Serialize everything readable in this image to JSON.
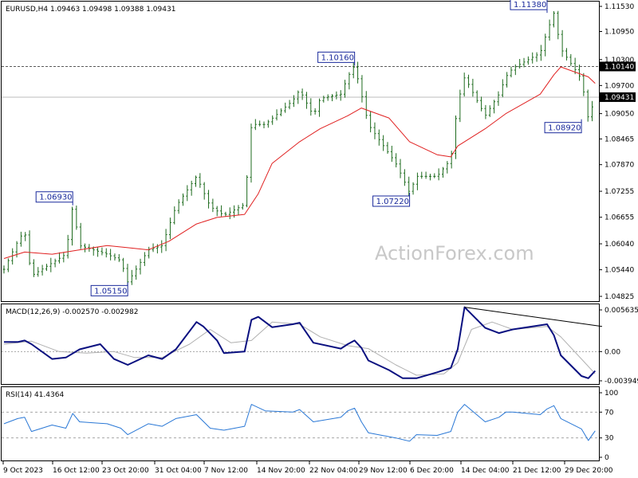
{
  "chart_data": {
    "type": "financial-chart",
    "instrument_header": "EURUSD,H4  1.09463 1.09498 1.09388 1.09431",
    "watermark": "ActionForex.com",
    "price_panel": {
      "yticks": [
        "1.11530",
        "1.10950",
        "1.10300",
        "1.09700",
        "1.09050",
        "1.08465",
        "1.07870",
        "1.07255",
        "1.06655",
        "1.06040",
        "1.05440",
        "1.04825"
      ],
      "ylim": [
        1.04825,
        1.1153
      ],
      "resistance_level_label": "1.10140",
      "last_price_label": "1.09431",
      "annotations": [
        {
          "label": "1.06930",
          "x": "Oct 19"
        },
        {
          "label": "1.05150",
          "x": "Oct 27"
        },
        {
          "label": "1.10160",
          "x": "Nov 29"
        },
        {
          "label": "1.07220",
          "x": "Dec 7"
        },
        {
          "label": "1.11380",
          "x": "Dec 27"
        },
        {
          "label": "1.08920",
          "x": "Jan 1"
        }
      ],
      "price_path": [
        [
          "Oct 9",
          1.0545
        ],
        [
          "Oct 11",
          1.061
        ],
        [
          "Oct 12",
          1.0635
        ],
        [
          "Oct 13",
          1.053
        ],
        [
          "Oct 16",
          1.056
        ],
        [
          "Oct 18",
          1.058
        ],
        [
          "Oct 19",
          1.0693
        ],
        [
          "Oct 20",
          1.06
        ],
        [
          "Oct 24",
          1.058
        ],
        [
          "Oct 26",
          1.0565
        ],
        [
          "Oct 27",
          1.0515
        ],
        [
          "Oct 30",
          1.059
        ],
        [
          "Nov 1",
          1.06
        ],
        [
          "Nov 3",
          1.069
        ],
        [
          "Nov 6",
          1.076
        ],
        [
          "Nov 8",
          1.069
        ],
        [
          "Nov 10",
          1.067
        ],
        [
          "Nov 13",
          1.0695
        ],
        [
          "Nov 14",
          1.088
        ],
        [
          "Nov 16",
          1.088
        ],
        [
          "Nov 20",
          1.0935
        ],
        [
          "Nov 21",
          1.096
        ],
        [
          "Nov 23",
          1.09
        ],
        [
          "Nov 24",
          1.094
        ],
        [
          "Nov 27",
          1.095
        ],
        [
          "Nov 28",
          1.099
        ],
        [
          "Nov 29",
          1.1016
        ],
        [
          "Nov 30",
          1.095
        ],
        [
          "Dec 1",
          1.088
        ],
        [
          "Dec 5",
          1.079
        ],
        [
          "Dec 7",
          1.0722
        ],
        [
          "Dec 8",
          1.076
        ],
        [
          "Dec 11",
          1.076
        ],
        [
          "Dec 13",
          1.08
        ],
        [
          "Dec 14",
          1.093
        ],
        [
          "Dec 15",
          1.099
        ],
        [
          "Dec 18",
          1.09
        ],
        [
          "Dec 20",
          1.095
        ],
        [
          "Dec 21",
          1.099
        ],
        [
          "Dec 22",
          1.101
        ],
        [
          "Dec 26",
          1.1045
        ],
        [
          "Dec 27",
          1.1095
        ],
        [
          "Dec 28",
          1.1138
        ],
        [
          "Dec 29",
          1.1055
        ],
        [
          "Jan 1",
          1.0985
        ],
        [
          "Jan 2",
          1.0892
        ],
        [
          "Jan 3",
          1.0943
        ]
      ],
      "moving_average": [
        [
          "Oct 9",
          1.057
        ],
        [
          "Oct 12",
          1.0585
        ],
        [
          "Oct 16",
          1.058
        ],
        [
          "Oct 20",
          1.059
        ],
        [
          "Oct 24",
          1.06
        ],
        [
          "Oct 27",
          1.0595
        ],
        [
          "Oct 30",
          1.059
        ],
        [
          "Nov 2",
          1.061
        ],
        [
          "Nov 6",
          1.065
        ],
        [
          "Nov 9",
          1.0665
        ],
        [
          "Nov 13",
          1.0672
        ],
        [
          "Nov 15",
          1.072
        ],
        [
          "Nov 17",
          1.079
        ],
        [
          "Nov 21",
          1.084
        ],
        [
          "Nov 24",
          1.087
        ],
        [
          "Nov 28",
          1.09
        ],
        [
          "Nov 30",
          1.0918
        ],
        [
          "Dec 4",
          1.0895
        ],
        [
          "Dec 7",
          1.084
        ],
        [
          "Dec 11",
          1.081
        ],
        [
          "Dec 13",
          1.0805
        ],
        [
          "Dec 14",
          1.083
        ],
        [
          "Dec 18",
          1.087
        ],
        [
          "Dec 21",
          1.0905
        ],
        [
          "Dec 26",
          1.095
        ],
        [
          "Dec 28",
          1.0995
        ],
        [
          "Dec 29",
          1.1013
        ],
        [
          "Jan 2",
          1.099
        ],
        [
          "Jan 3",
          1.0975
        ]
      ]
    },
    "macd_panel": {
      "header": "MACD(12,26,9) -0.002570 -0.002982",
      "yticks": [
        "0.005635",
        "0.00",
        "-0.003949"
      ],
      "ylim": [
        -0.003949,
        0.005635
      ],
      "macd": [
        [
          "Oct 9",
          0.0013
        ],
        [
          "Oct 11",
          0.0013
        ],
        [
          "Oct 12",
          0.0015
        ],
        [
          "Oct 13",
          0.001
        ],
        [
          "Oct 16",
          -0.001
        ],
        [
          "Oct 18",
          -0.0008
        ],
        [
          "Oct 20",
          0.0003
        ],
        [
          "Oct 23",
          0.001
        ],
        [
          "Oct 25",
          -0.001
        ],
        [
          "Oct 27",
          -0.0018
        ],
        [
          "Oct 30",
          -0.0005
        ],
        [
          "Nov 1",
          -0.001
        ],
        [
          "Nov 3",
          0.0003
        ],
        [
          "Nov 6",
          0.004
        ],
        [
          "Nov 7",
          0.0034
        ],
        [
          "Nov 9",
          0.0015
        ],
        [
          "Nov 10",
          -0.0002
        ],
        [
          "Nov 13",
          0.0
        ],
        [
          "Nov 14",
          0.0043
        ],
        [
          "Nov 15",
          0.0047
        ],
        [
          "Nov 17",
          0.0033
        ],
        [
          "Nov 20",
          0.0037
        ],
        [
          "Nov 21",
          0.0039
        ],
        [
          "Nov 23",
          0.0012
        ],
        [
          "Nov 27",
          0.0004
        ],
        [
          "Nov 28",
          0.001
        ],
        [
          "Nov 29",
          0.0015
        ],
        [
          "Nov 30",
          0.0005
        ],
        [
          "Dec 1",
          -0.0012
        ],
        [
          "Dec 4",
          -0.0025
        ],
        [
          "Dec 6",
          -0.0036
        ],
        [
          "Dec 8",
          -0.0036
        ],
        [
          "Dec 11",
          -0.0028
        ],
        [
          "Dec 13",
          -0.0022
        ],
        [
          "Dec 14",
          0.0003
        ],
        [
          "Dec 15",
          0.006
        ],
        [
          "Dec 18",
          0.0032
        ],
        [
          "Dec 20",
          0.0025
        ],
        [
          "Dec 22",
          0.003
        ],
        [
          "Dec 27",
          0.0037
        ],
        [
          "Dec 28",
          0.0022
        ],
        [
          "Dec 29",
          -0.0005
        ],
        [
          "Jan 1",
          -0.0033
        ],
        [
          "Jan 2",
          -0.0036
        ],
        [
          "Jan 3",
          -0.0026
        ]
      ],
      "signal": [
        [
          "Oct 9",
          0.001
        ],
        [
          "Oct 13",
          0.0014
        ],
        [
          "Oct 17",
          0.0
        ],
        [
          "Oct 21",
          -0.0002
        ],
        [
          "Oct 25",
          0.0
        ],
        [
          "Oct 28",
          -0.0008
        ],
        [
          "Nov 1",
          -0.0008
        ],
        [
          "Nov 5",
          0.001
        ],
        [
          "Nov 8",
          0.003
        ],
        [
          "Nov 11",
          0.0012
        ],
        [
          "Nov 14",
          0.0015
        ],
        [
          "Nov 17",
          0.004
        ],
        [
          "Nov 21",
          0.0037
        ],
        [
          "Nov 24",
          0.002
        ],
        [
          "Nov 28",
          0.0008
        ],
        [
          "Dec 1",
          0.0004
        ],
        [
          "Dec 5",
          -0.0018
        ],
        [
          "Dec 8",
          -0.0032
        ],
        [
          "Dec 12",
          -0.003
        ],
        [
          "Dec 14",
          -0.0015
        ],
        [
          "Dec 16",
          0.003
        ],
        [
          "Dec 19",
          0.004
        ],
        [
          "Dec 22",
          0.003
        ],
        [
          "Dec 27",
          0.0034
        ],
        [
          "Dec 29",
          0.002
        ],
        [
          "Jan 1",
          -0.001
        ],
        [
          "Jan 3",
          -0.003
        ]
      ],
      "trendline": [
        [
          "Dec 15",
          0.006
        ],
        [
          "Jan 4",
          0.0034
        ]
      ]
    },
    "rsi_panel": {
      "header": "RSI(14) 41.4364",
      "yticks": [
        "100",
        "70",
        "30",
        "0"
      ],
      "ylim": [
        0,
        100
      ],
      "levels": [
        70,
        30
      ],
      "rsi": [
        [
          "Oct 9",
          52
        ],
        [
          "Oct 11",
          60
        ],
        [
          "Oct 12",
          62
        ],
        [
          "Oct 13",
          40
        ],
        [
          "Oct 16",
          50
        ],
        [
          "Oct 18",
          45
        ],
        [
          "Oct 19",
          68
        ],
        [
          "Oct 20",
          55
        ],
        [
          "Oct 24",
          52
        ],
        [
          "Oct 26",
          45
        ],
        [
          "Oct 27",
          35
        ],
        [
          "Oct 30",
          52
        ],
        [
          "Nov 1",
          48
        ],
        [
          "Nov 3",
          60
        ],
        [
          "Nov 6",
          66
        ],
        [
          "Nov 8",
          45
        ],
        [
          "Nov 10",
          42
        ],
        [
          "Nov 13",
          48
        ],
        [
          "Nov 14",
          82
        ],
        [
          "Nov 16",
          72
        ],
        [
          "Nov 20",
          70
        ],
        [
          "Nov 21",
          74
        ],
        [
          "Nov 23",
          55
        ],
        [
          "Nov 27",
          62
        ],
        [
          "Nov 28",
          72
        ],
        [
          "Nov 29",
          76
        ],
        [
          "Nov 30",
          55
        ],
        [
          "Dec 1",
          38
        ],
        [
          "Dec 5",
          30
        ],
        [
          "Dec 7",
          25
        ],
        [
          "Dec 8",
          35
        ],
        [
          "Dec 11",
          34
        ],
        [
          "Dec 13",
          40
        ],
        [
          "Dec 14",
          70
        ],
        [
          "Dec 15",
          82
        ],
        [
          "Dec 18",
          55
        ],
        [
          "Dec 20",
          62
        ],
        [
          "Dec 21",
          70
        ],
        [
          "Dec 22",
          70
        ],
        [
          "Dec 26",
          66
        ],
        [
          "Dec 27",
          75
        ],
        [
          "Dec 28",
          80
        ],
        [
          "Dec 29",
          60
        ],
        [
          "Jan 1",
          44
        ],
        [
          "Jan 2",
          26
        ],
        [
          "Jan 3",
          41
        ]
      ]
    },
    "x_ticks": [
      "9 Oct 2023",
      "16 Oct 12:00",
      "23 Oct 20:00",
      "31 Oct 04:00",
      "7 Nov 12:00",
      "14 Nov 20:00",
      "22 Nov 04:00",
      "29 Nov 12:00",
      "6 Dec 20:00",
      "14 Dec 04:00",
      "21 Dec 12:00",
      "29 Dec 20:00"
    ],
    "colors": {
      "price": "#1e6b1e",
      "ma": "#e02020",
      "macd": "#0a1080",
      "signal": "#b0b0b0",
      "rsi": "#2a78d6",
      "annotation": "#1a2a9c"
    }
  }
}
